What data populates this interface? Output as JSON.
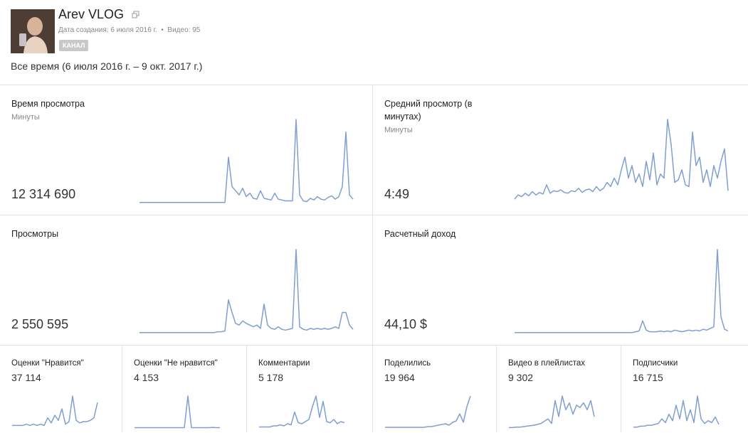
{
  "header": {
    "title": "Arev VLOG",
    "created": "Дата создания: 6 июля 2016 г.",
    "videos": "Видео: 95",
    "badge": "КАНАЛ",
    "period": "Все время (6 июля 2016 г. – 9 окт. 2017 г.)"
  },
  "line_color": "#7f9fd0",
  "cards": [
    {
      "title": "Время просмотра",
      "unit": "Минуты",
      "value": "12 314 690",
      "series": [
        1,
        1,
        1,
        1,
        1,
        1,
        1,
        1,
        1,
        1,
        1,
        1,
        1,
        1,
        1,
        1,
        1,
        1,
        1,
        1,
        1,
        1,
        1,
        1,
        1,
        55,
        20,
        15,
        10,
        18,
        8,
        12,
        6,
        5,
        15,
        6,
        5,
        4,
        12,
        5,
        4,
        3,
        3,
        3,
        100,
        10,
        3,
        2,
        6,
        4,
        8,
        5,
        4,
        7,
        9,
        5,
        8,
        20,
        85,
        10,
        5
      ]
    },
    {
      "title": "Средний просмотр (в минутах)",
      "unit": "Минуты",
      "value": "4:49",
      "series": [
        5,
        10,
        8,
        12,
        9,
        14,
        10,
        13,
        11,
        22,
        12,
        15,
        14,
        16,
        13,
        12,
        15,
        14,
        18,
        13,
        16,
        17,
        14,
        20,
        15,
        18,
        25,
        20,
        30,
        22,
        40,
        55,
        30,
        45,
        25,
        35,
        20,
        50,
        28,
        60,
        22,
        35,
        30,
        100,
        70,
        25,
        28,
        40,
        22,
        20,
        85,
        45,
        55,
        25,
        40,
        20,
        45,
        30,
        50,
        65,
        15
      ]
    },
    {
      "title": "Просмотры",
      "value": "2 550 595",
      "series": [
        1,
        1,
        1,
        1,
        1,
        1,
        1,
        1,
        1,
        1,
        1,
        1,
        1,
        1,
        1,
        1,
        1,
        1,
        1,
        1,
        1,
        1,
        2,
        2,
        3,
        40,
        25,
        12,
        10,
        15,
        12,
        10,
        8,
        10,
        6,
        35,
        10,
        6,
        5,
        8,
        5,
        4,
        5,
        6,
        100,
        8,
        5,
        4,
        6,
        5,
        6,
        5,
        6,
        5,
        6,
        8,
        6,
        25,
        25,
        10,
        5
      ]
    },
    {
      "title": "Расчетный доход",
      "value": "44,10 $",
      "series": [
        1,
        1,
        1,
        1,
        1,
        1,
        1,
        1,
        1,
        1,
        1,
        1,
        1,
        1,
        1,
        1,
        1,
        1,
        1,
        1,
        1,
        1,
        1,
        1,
        1,
        1,
        1,
        1,
        1,
        1,
        1,
        1,
        1,
        1,
        2,
        3,
        15,
        4,
        2,
        2,
        2,
        3,
        2,
        3,
        2,
        4,
        3,
        2,
        3,
        4,
        3,
        4,
        3,
        5,
        4,
        6,
        8,
        100,
        20,
        5,
        3
      ]
    },
    {
      "title": "Оценки \"Нравится\"",
      "value": "37 114",
      "series": [
        2,
        2,
        2,
        2,
        3,
        2,
        3,
        2,
        3,
        2,
        8,
        4,
        10,
        6,
        15,
        3,
        5,
        25,
        6,
        4,
        5,
        5,
        6,
        8,
        20
      ]
    },
    {
      "title": "Оценки \"Не нравится\"",
      "value": "4 153",
      "series": [
        1,
        1,
        1,
        1,
        1,
        1,
        1,
        1,
        1,
        1,
        1,
        1,
        1,
        1,
        1,
        100,
        1,
        1,
        1,
        1,
        1,
        1,
        2,
        1,
        1
      ]
    },
    {
      "title": "Комментарии",
      "value": "5 178",
      "series": [
        1,
        1,
        1,
        1,
        2,
        2,
        3,
        2,
        4,
        3,
        15,
        5,
        4,
        6,
        8,
        20,
        30,
        10,
        25,
        6,
        5,
        8,
        4,
        6,
        5
      ]
    },
    {
      "title": "Поделились",
      "value": "19 964",
      "series": [
        1,
        1,
        1,
        1,
        1,
        1,
        1,
        1,
        1,
        1,
        1,
        1,
        2,
        2,
        3,
        4,
        5,
        6,
        4,
        8,
        10,
        20,
        8,
        30,
        45
      ]
    },
    {
      "title": "Видео в плейлистах",
      "value": "9 302",
      "series": [
        1,
        1,
        2,
        2,
        3,
        4,
        5,
        6,
        8,
        10,
        15,
        20,
        10,
        60,
        25,
        70,
        40,
        55,
        30,
        50,
        45,
        55,
        40,
        60,
        25
      ]
    },
    {
      "title": "Подписчики",
      "value": "16 715",
      "series": [
        1,
        1,
        2,
        2,
        3,
        3,
        4,
        5,
        10,
        6,
        15,
        8,
        25,
        10,
        30,
        8,
        20,
        6,
        35,
        10,
        5,
        8,
        6,
        12,
        4
      ]
    }
  ]
}
